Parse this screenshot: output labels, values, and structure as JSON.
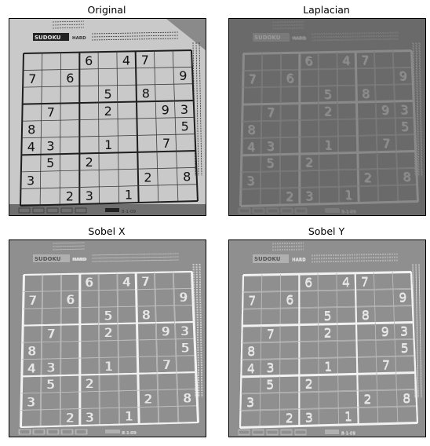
{
  "figure": {
    "panels": [
      {
        "title": "Original",
        "style": "original"
      },
      {
        "title": "Laplacian",
        "style": "laplacian"
      },
      {
        "title": "Sobel X",
        "style": "sobelx"
      },
      {
        "title": "Sobel Y",
        "style": "sobely"
      }
    ],
    "puzzle": {
      "label": "SUDOKU",
      "difficulty": "HARD",
      "date": "8-1-09",
      "digits": [
        [
          0,
          0,
          0,
          6,
          0,
          4,
          7,
          0,
          0
        ],
        [
          7,
          0,
          6,
          0,
          0,
          0,
          0,
          0,
          9
        ],
        [
          0,
          0,
          0,
          0,
          5,
          0,
          8,
          0,
          0
        ],
        [
          0,
          7,
          0,
          0,
          2,
          0,
          0,
          9,
          3
        ],
        [
          8,
          0,
          0,
          0,
          0,
          0,
          0,
          0,
          5
        ],
        [
          4,
          3,
          0,
          0,
          1,
          0,
          0,
          7,
          0
        ],
        [
          0,
          5,
          0,
          2,
          0,
          0,
          0,
          0,
          0
        ],
        [
          3,
          0,
          0,
          0,
          0,
          0,
          2,
          0,
          8
        ],
        [
          0,
          0,
          2,
          3,
          0,
          1,
          0,
          0,
          0
        ]
      ]
    }
  }
}
